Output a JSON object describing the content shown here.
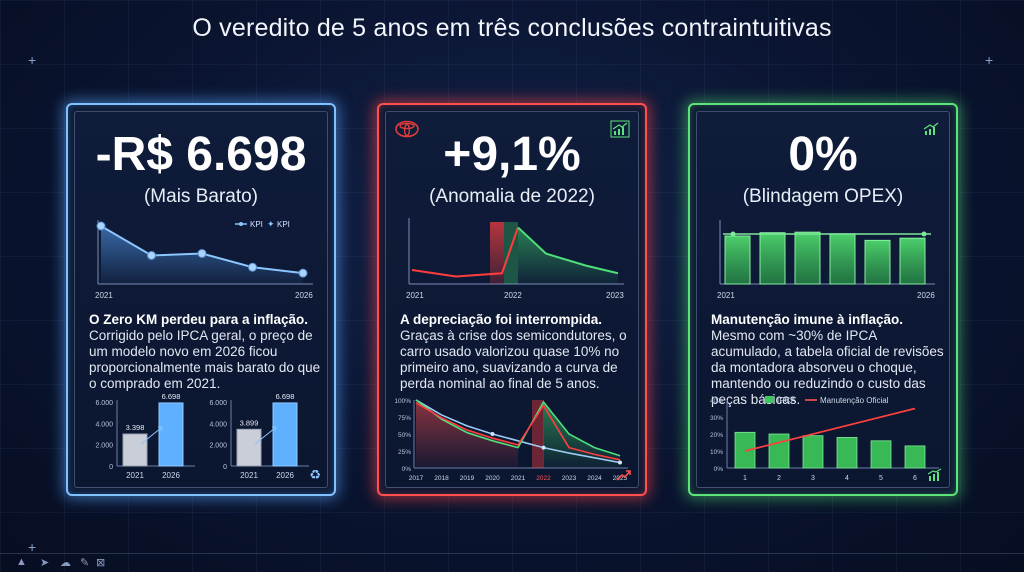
{
  "title": "O veredito de 5 anos em três conclusões contraintuitivas",
  "cards": [
    {
      "headline": "-R$ 6.698",
      "subtitle": "(Mais Barato)",
      "body_title": "O Zero KM perdeu para a inflação.",
      "body_text": "Corrigido pelo IPCA geral, o preço de um modelo novo em 2026 ficou proporcionalmente mais barato do que o comprado em 2021."
    },
    {
      "headline": "+9,1%",
      "subtitle": "(Anomalia de 2022)",
      "body_title": "A depreciação foi interrompida.",
      "body_text": "Graças à crise dos semicondutores, o carro usado valorizou quase 10% no primeiro ano, suavizando a curva de perda nominal ao final de 5 anos."
    },
    {
      "headline": "0%",
      "subtitle": "(Blindagem OPEX)",
      "body_title": "Manutenção imune à inflação.",
      "body_text": "Mesmo com ~30% de IPCA acumulado, a tabela oficial de revisões da montadora absorveu o choque, mantendo ou reduzindo o custo das peças básicas."
    }
  ],
  "colors": {
    "blue": "#7fc2ff",
    "red": "#ff4f4f",
    "green": "#5ee37a"
  },
  "icons": [
    "toyota-logo-icon",
    "trend-up-icon",
    "trend-up-red-icon",
    "recycle-money-icon",
    "kpi-legend-icon"
  ],
  "chart_data": [
    {
      "type": "line",
      "x_labels": [
        "2021",
        "2026"
      ],
      "values": [
        100,
        70,
        72,
        58,
        52
      ],
      "legend": [
        "KPI",
        "KPI"
      ]
    },
    {
      "type": "bar",
      "categories": [
        "2021",
        "2026"
      ],
      "values": [
        3398,
        6698
      ],
      "data_labels": [
        "3.398",
        "6.698"
      ],
      "y_ticks": [
        "6.000",
        "4.000",
        "2.000",
        "0"
      ],
      "ylim": [
        0,
        6800
      ]
    },
    {
      "type": "bar",
      "categories": [
        "2021",
        "2026"
      ],
      "values": [
        3899,
        6698
      ],
      "data_labels": [
        "3.899",
        "6.698"
      ],
      "y_ticks": [
        "6.000",
        "4.000",
        "2.000",
        "0"
      ],
      "ylim": [
        0,
        6800
      ]
    },
    {
      "type": "line",
      "x_labels": [
        "2021",
        "2022",
        "2023"
      ],
      "values": [
        22,
        10,
        16,
        100,
        52,
        30,
        16
      ],
      "ylim": [
        0,
        110
      ]
    },
    {
      "type": "line",
      "x": [
        "2017",
        "2018",
        "2019",
        "2020",
        "2021",
        "2022",
        "2023",
        "2024",
        "2025"
      ],
      "y_ticks": [
        "100%",
        "75%",
        "50%",
        "25%",
        "0%"
      ],
      "series": [
        {
          "values": [
            100,
            78,
            62,
            50,
            40,
            30,
            22,
            15,
            8
          ]
        },
        {
          "values": [
            100,
            72,
            52,
            40,
            30,
            97,
            50,
            30,
            18
          ]
        },
        {
          "values": [
            96,
            74,
            56,
            44,
            34,
            92,
            30,
            20,
            12
          ]
        }
      ],
      "highlight_x": "2022",
      "ylim": [
        0,
        100
      ]
    },
    {
      "type": "bar",
      "categories": [
        "2021",
        "",
        "",
        "",
        "",
        "2026"
      ],
      "values": [
        88,
        94,
        95,
        92,
        80,
        84
      ],
      "ylim": [
        0,
        110
      ]
    },
    {
      "type": "bar",
      "categories": [
        "1",
        "2",
        "3",
        "4",
        "5",
        "6"
      ],
      "y_ticks": [
        "40%",
        "30%",
        "20%",
        "10%",
        "0%"
      ],
      "legend": [
        "IPCA",
        "Manutenção Oficial"
      ],
      "series": [
        {
          "name": "IPCA",
          "values": [
            21,
            20,
            19,
            18,
            16,
            13
          ]
        },
        {
          "name": "Manutenção Oficial",
          "values": [
            10,
            15,
            20,
            25,
            30,
            35
          ]
        }
      ],
      "ylim": [
        0,
        40
      ]
    }
  ]
}
